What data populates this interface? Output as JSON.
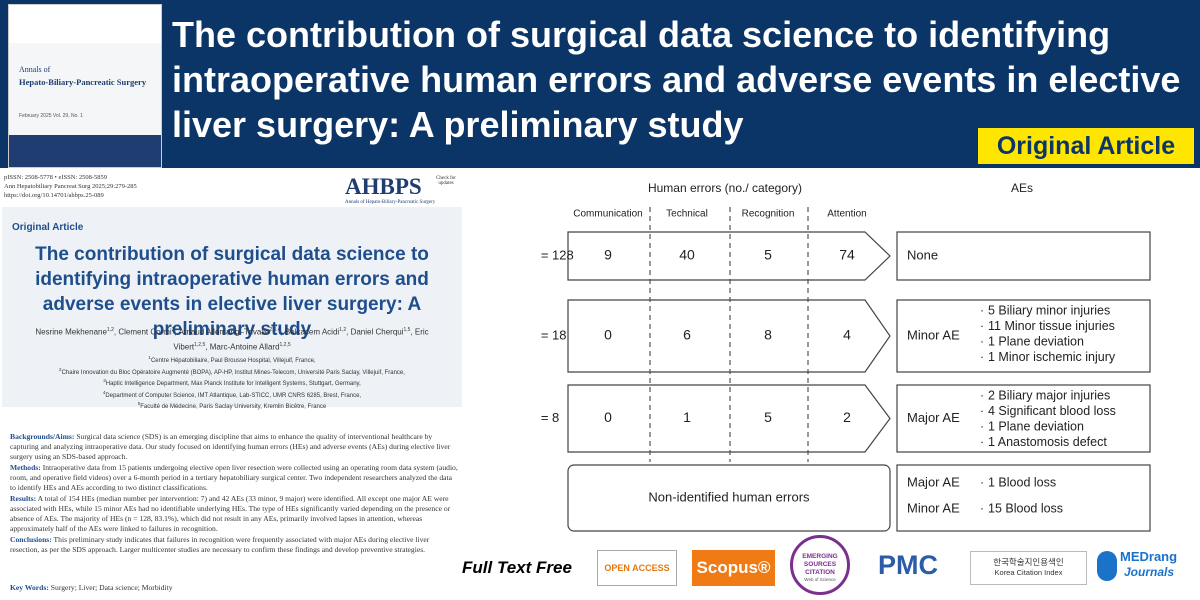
{
  "header": {
    "title": "The contribution of surgical data science to identifying intraoperative human errors and adverse events in elective liver surgery: A preliminary study",
    "badge": "Original Article",
    "cover": {
      "journal_line1": "Annals of",
      "journal_line2": "Hepato-Biliary-Pancreatic Surgery",
      "issue": "February 2025 Vol. 29, No. 1"
    }
  },
  "paper": {
    "issn": "pISSN: 2508-5778 • eISSN: 2508-5859",
    "citation": "Ann Hepatobiliary Pancreat Surg 2025;29:279-285",
    "doi": "https://doi.org/10.14701/ahbps.25-089",
    "logo": "AHBPS",
    "logo_sub": "Annals of Hepato-Biliary-Pancreatic Surgery",
    "updates": "Check for updates",
    "section": "Original Article",
    "title": "The contribution of surgical data science to identifying intraoperative human errors and adverse events in elective liver surgery: A preliminary study",
    "authors": [
      {
        "name": "Nesrine Mekhenane",
        "sup": "1,2"
      },
      {
        "name": "Clement Cormi",
        "sup": "2"
      },
      {
        "name": "Arnaud Allemang–Trivalle",
        "sup": "2,3,4"
      },
      {
        "name": "Belkacem Acidi",
        "sup": "1,2"
      },
      {
        "name": "Daniel Cherqui",
        "sup": "1,5"
      },
      {
        "name": "Eric Vibert",
        "sup": "1,2,5"
      },
      {
        "name": "Marc-Antoine Allard",
        "sup": "1,2,5"
      }
    ],
    "affiliations": [
      {
        "sup": "1",
        "text": "Centre Hépatobiliaire, Paul Brousse Hospital, Villejuif, France,"
      },
      {
        "sup": "2",
        "text": "Chaire Innovation du Bloc Opératoire Augmenté (BOPA), AP-HP, Institut Mines-Telecom, Université Paris Saclay, Villejuif, France,"
      },
      {
        "sup": "3",
        "text": "Haptic Intelligence Department, Max Planck Institute for Intelligent Systems, Stuttgart, Germany,"
      },
      {
        "sup": "4",
        "text": "Department of Computer Science, IMT Atlantique, Lab-STICC, UMR CNRS 6285, Brest, France,"
      },
      {
        "sup": "5",
        "text": "Faculté de Médecine, Paris Saclay University, Kremlin Bicêtre, France"
      }
    ],
    "abstract": [
      {
        "label": "Backgrounds/Aims:",
        "text": "Surgical data science (SDS) is an emerging discipline that aims to enhance the quality of interventional healthcare by capturing and analyzing intraoperative data. Our study focused on identifying human errors (HEs) and adverse events (AEs) during elective liver surgery using an SDS-based approach."
      },
      {
        "label": "Methods:",
        "text": "Intraoperative data from 15 patients undergoing elective open liver resection were collected using an operating room data system (audio, room, and operative field videos) over a 6-month period in a tertiary hepatobiliary surgical center. Two independent researchers analyzed the data to identify HEs and AEs according to two distinct classifications."
      },
      {
        "label": "Results:",
        "text": "A total of 154 HEs (median number per intervention: 7) and 42 AEs (33 minor, 9 major) were identified. All except one major AE were associated with HEs, while 15 minor AEs had no identifiable underlying HEs. The type of HEs significantly varied depending on the presence or absence of AEs. The majority of HEs (n = 128, 83.1%), which did not result in any AEs, primarily involved lapses in attention, whereas approximately half of the AEs were linked to failures in recognition."
      },
      {
        "label": "Conclusions:",
        "text": "This preliminary study indicates that failures in recognition were frequently associated with major AEs during elective liver resection, as per the SDS approach. Larger multicenter studies are necessary to confirm these findings and develop preventive strategies."
      }
    ],
    "keywords_label": "Key Words:",
    "keywords": "Surgery; Liver; Data science; Morbidity"
  },
  "diagram": {
    "header_errors": "Human errors (no./ category)",
    "header_aes": "AEs",
    "columns": [
      "Communication",
      "Technical",
      "Recognition",
      "Attention"
    ],
    "rows": [
      {
        "n": "n = 128",
        "values": [
          9,
          40,
          5,
          74
        ],
        "ae": "None",
        "items": []
      },
      {
        "n": "n = 18",
        "values": [
          0,
          6,
          8,
          4
        ],
        "ae": "Minor AE",
        "items": [
          "5 Biliary minor injuries",
          "11 Minor tissue injuries",
          "1 Plane deviation",
          "1 Minor ischemic injury"
        ]
      },
      {
        "n": "n = 8",
        "values": [
          0,
          1,
          5,
          2
        ],
        "ae": "Major AE",
        "items": [
          "2 Biliary major injuries",
          "4 Significant blood loss",
          "1 Plane deviation",
          "1 Anastomosis defect"
        ]
      }
    ],
    "non_identified": {
      "label": "Non-identified human errors",
      "aes": [
        {
          "ae": "Major AE",
          "item": "1 Blood loss"
        },
        {
          "ae": "Minor AE",
          "item": "15 Blood loss"
        }
      ]
    }
  },
  "footer": {
    "free": "Full Text Free",
    "open_access": "OPEN ACCESS",
    "scopus": "Scopus®",
    "esci": "EMERGING SOURCES CITATION",
    "esci_sub": "Web of Science",
    "pmc": "PMC",
    "kci_ko": "한국학술지인용색인",
    "kci_en": "Korea Citation Index",
    "medrang": "MEDrang",
    "medrang_sub": "Journals"
  }
}
